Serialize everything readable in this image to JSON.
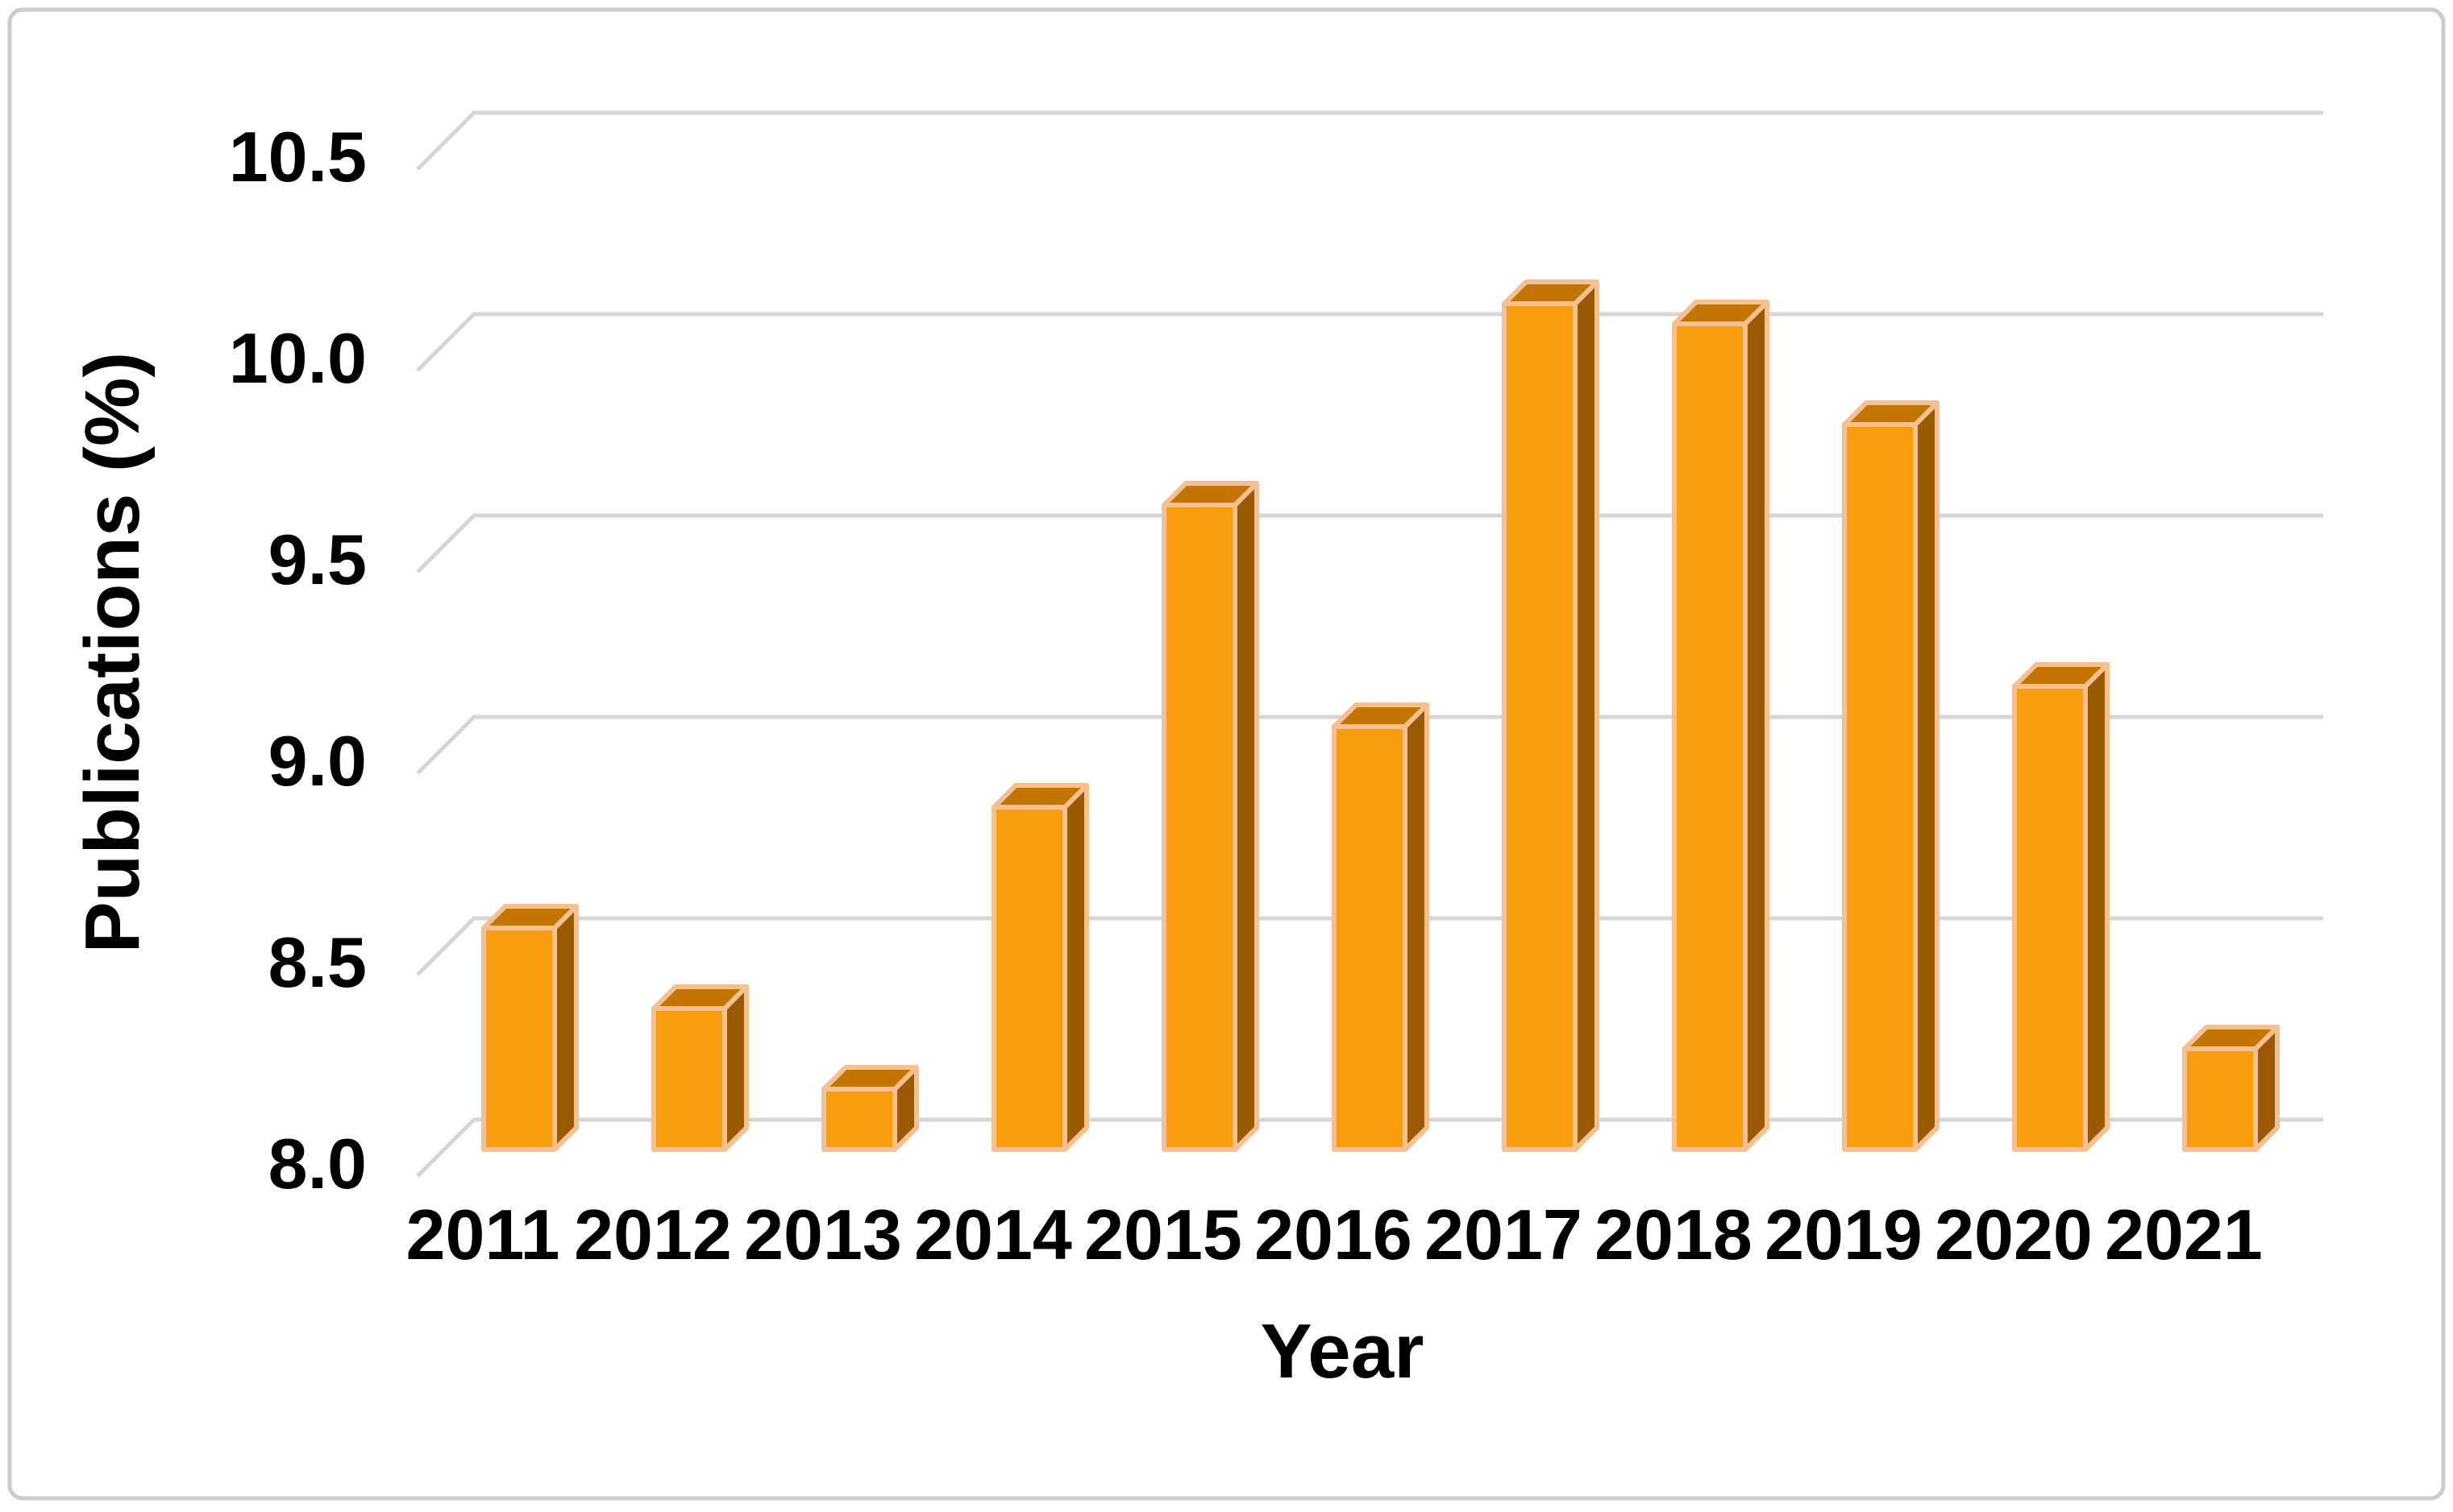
{
  "chart_data": {
    "type": "bar",
    "title": "",
    "xlabel": "Year",
    "ylabel": "Publications (%)",
    "categories": [
      "2011",
      "2012",
      "2013",
      "2014",
      "2015",
      "2016",
      "2017",
      "2018",
      "2019",
      "2020",
      "2021"
    ],
    "values": [
      8.55,
      8.35,
      8.15,
      8.85,
      9.6,
      9.05,
      10.1,
      10.05,
      9.8,
      9.15,
      8.25
    ],
    "ylim": [
      8.0,
      10.5
    ],
    "y_ticks": [
      "8.0",
      "8.5",
      "9.0",
      "9.5",
      "10.0",
      "10.5"
    ],
    "grid": true,
    "legend": false,
    "bar_style": "3d-oblique",
    "layout": {
      "gridlines_horizontal": true,
      "gridline_left_bend": "diagonal stub rising to back wall",
      "axis_lines": "none",
      "frame": "rounded light-gray border around whole chart"
    },
    "colors": {
      "bar_front": "#F99C0D",
      "bar_top": "#C27503",
      "bar_side": "#9A5A02",
      "bar_outline": "#F6C091",
      "gridline": "#D6D6D6",
      "frame_border": "#CCCCCC",
      "text": "#000000",
      "background": "#FFFFFF"
    }
  }
}
